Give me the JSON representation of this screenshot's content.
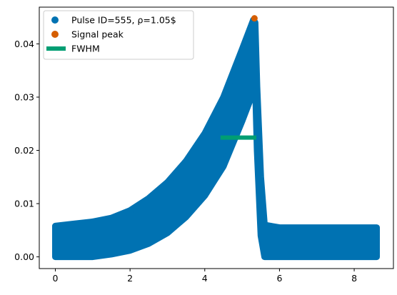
{
  "chart_data": {
    "type": "scatter",
    "title": "",
    "xlabel": "",
    "ylabel": "",
    "xlim": [
      -0.43,
      9.05
    ],
    "ylim": [
      -0.0022,
      0.0469
    ],
    "x_ticks": [
      0,
      2,
      4,
      6,
      8
    ],
    "x_tick_labels": [
      "0",
      "2",
      "4",
      "6",
      "8"
    ],
    "y_ticks": [
      0.0,
      0.01,
      0.02,
      0.03,
      0.04
    ],
    "y_tick_labels": [
      "0.00",
      "0.01",
      "0.02",
      "0.03",
      "0.04"
    ],
    "grid": false,
    "legend_position": "upper-left",
    "legend": [
      {
        "label": "Pulse ID=555, ρ=1.05$",
        "marker": "circle",
        "color": "#0072b2"
      },
      {
        "label": "Signal peak",
        "marker": "circle",
        "color": "#d55e00"
      },
      {
        "label": "FWHM",
        "marker": "line",
        "color": "#009e73"
      }
    ],
    "series": [
      {
        "name": "Pulse ID=555, ρ=1.05$",
        "color": "#0072b2",
        "envelope": {
          "x": [
            0.0,
            0.5,
            1.0,
            1.5,
            2.0,
            2.5,
            3.0,
            3.5,
            4.0,
            4.5,
            5.0,
            5.3,
            5.35,
            5.4,
            5.5,
            5.6,
            6.0,
            7.0,
            8.0,
            8.6
          ],
          "upper": [
            0.0058,
            0.0062,
            0.0066,
            0.0073,
            0.0087,
            0.011,
            0.014,
            0.018,
            0.0232,
            0.03,
            0.039,
            0.0445,
            0.044,
            0.032,
            0.015,
            0.006,
            0.0055,
            0.0055,
            0.0055,
            0.0055
          ],
          "lower": [
            0.0,
            0.0,
            0.0,
            0.0005,
            0.0012,
            0.0025,
            0.0045,
            0.0075,
            0.0115,
            0.017,
            0.0255,
            0.031,
            0.033,
            0.02,
            0.004,
            0.0,
            0.0,
            0.0,
            0.0,
            0.0
          ]
        }
      },
      {
        "name": "Signal peak",
        "color": "#d55e00",
        "points": [
          {
            "x": 5.33,
            "y": 0.0448
          }
        ]
      },
      {
        "name": "FWHM",
        "color": "#009e73",
        "segment": {
          "x": [
            4.42,
            5.38
          ],
          "y": 0.0224
        }
      }
    ]
  }
}
